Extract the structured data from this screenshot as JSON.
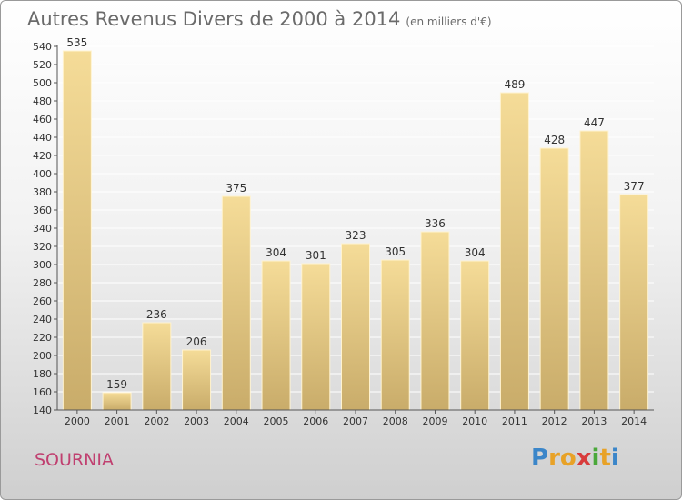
{
  "title": "Autres Revenus Divers de 2000 à 2014",
  "unit": "(en milliers d'€)",
  "commune": "SOURNIA",
  "logo": {
    "letters": [
      "P",
      "r",
      "o",
      "x",
      "i",
      "t",
      "i"
    ],
    "colors": [
      "#3b86c9",
      "#e8a227",
      "#e8a227",
      "#d83b3b",
      "#4aa83a",
      "#e8a227",
      "#3b86c9"
    ]
  },
  "colors": {
    "bar_light": "#f5dc98",
    "bar_dark": "#c9ac6a",
    "grid": "#ffffff",
    "axis": "#555555"
  },
  "chart_data": {
    "type": "bar",
    "title": "Autres Revenus Divers de 2000 à 2014",
    "subtitle": "(en milliers d'€)",
    "categories": [
      "2000",
      "2001",
      "2002",
      "2003",
      "2004",
      "2005",
      "2006",
      "2007",
      "2008",
      "2009",
      "2010",
      "2011",
      "2012",
      "2013",
      "2014"
    ],
    "values": [
      535,
      159,
      236,
      206,
      375,
      304,
      301,
      323,
      305,
      336,
      304,
      489,
      428,
      447,
      377
    ],
    "ylim": [
      140,
      540
    ],
    "ytick_step": 20,
    "xlabel": "",
    "ylabel": "",
    "grid": true,
    "data_labels": true
  }
}
